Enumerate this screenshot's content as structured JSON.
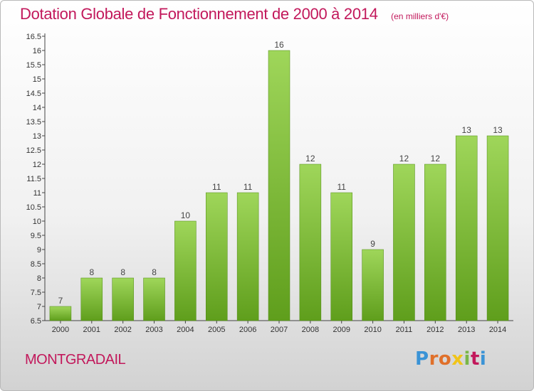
{
  "header": {
    "title": "Dotation Globale de Fonctionnement de 2000 à 2014",
    "subtitle": "(en milliers d'€)"
  },
  "footer": {
    "commune": "MONTGRADAIL",
    "logo_letters": [
      "P",
      "r",
      "o",
      "x",
      "i",
      "t",
      "i"
    ],
    "logo_colors": [
      "#3a93d6",
      "#e0702a",
      "#e0702a",
      "#f0c419",
      "#7ab648",
      "#c2185b",
      "#3a93d6"
    ]
  },
  "colors": {
    "bar_light": "#9fd65a",
    "bar_dark": "#5f9e1c",
    "accent": "#c2185b"
  },
  "chart_data": {
    "type": "bar",
    "categories": [
      "2000",
      "2001",
      "2002",
      "2003",
      "2004",
      "2005",
      "2006",
      "2007",
      "2008",
      "2009",
      "2010",
      "2011",
      "2012",
      "2013",
      "2014"
    ],
    "values": [
      7,
      8,
      8,
      8,
      10,
      11,
      11,
      16,
      12,
      11,
      9,
      12,
      12,
      13,
      13
    ],
    "data_labels": [
      "7",
      "8",
      "8",
      "8",
      "10",
      "11",
      "11",
      "16",
      "12",
      "11",
      "9",
      "12",
      "12",
      "13",
      "13"
    ],
    "ylim": [
      6.5,
      16.5
    ],
    "yticks": [
      "6.5",
      "7",
      "7.5",
      "8",
      "8.5",
      "9",
      "9.5",
      "10",
      "10.5",
      "11",
      "11.5",
      "12",
      "12.5",
      "13",
      "13.5",
      "14",
      "14.5",
      "15",
      "15.5",
      "16",
      "16.5"
    ],
    "grid": false
  }
}
